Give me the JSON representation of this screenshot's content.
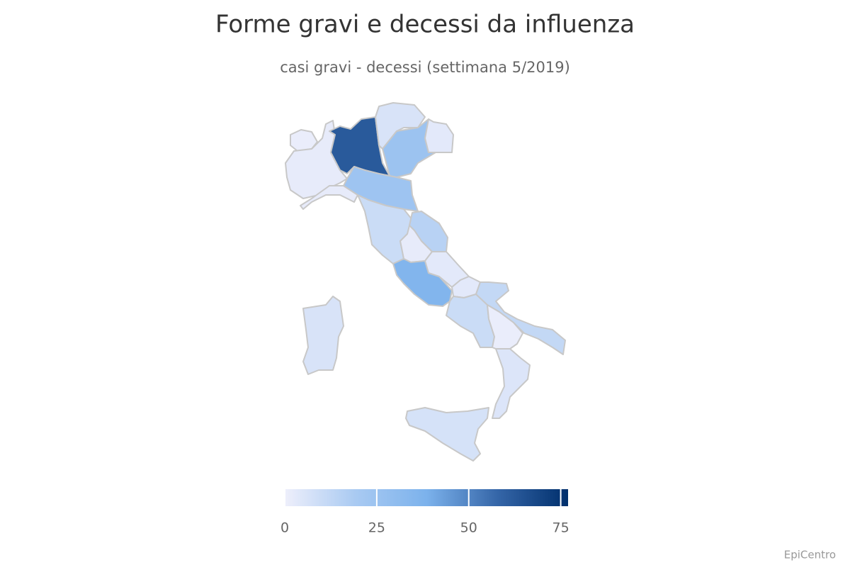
{
  "chart_data": {
    "type": "map",
    "title": "Forme gravi e decessi da influenza",
    "subtitle": "casi gravi - decessi (settimana 5/2019)",
    "values": [
      1,
      2,
      2,
      62,
      6,
      25,
      3,
      24,
      10,
      15,
      2,
      36,
      3,
      3,
      10,
      12,
      1,
      5,
      7,
      6
    ],
    "colors": [
      "#eeeffb",
      "#a9caf2",
      "#7cb2ec",
      "#3566a8",
      "#002f6c"
    ],
    "clim": [
      0,
      77
    ],
    "cticks": [
      0,
      25,
      50,
      75
    ],
    "credits": "EpiCentro"
  }
}
